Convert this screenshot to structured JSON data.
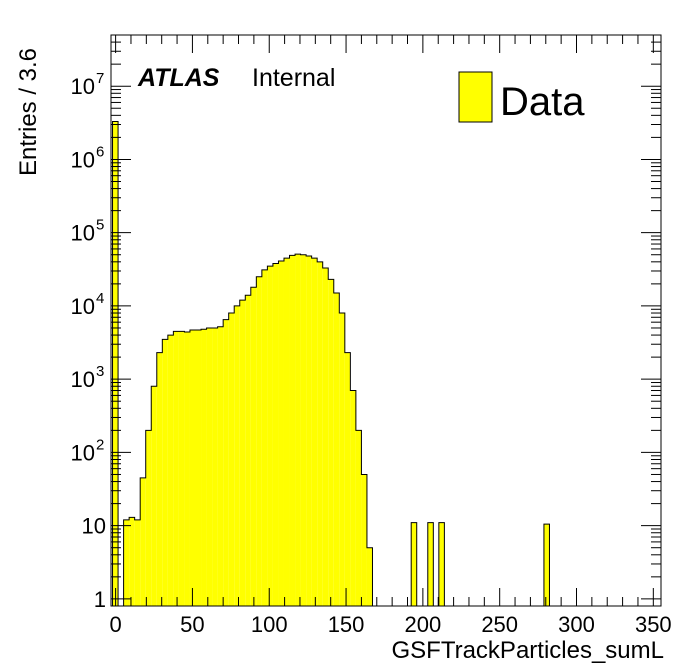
{
  "chart_data": {
    "type": "bar",
    "histogram": true,
    "title": "",
    "xlabel": "GSFTrackParticles_sumL",
    "ylabel": "Entries / 3.6",
    "xlim": [
      -3,
      355
    ],
    "ylim": [
      0.8,
      50000000
    ],
    "log_y": true,
    "grid": false,
    "legend_position": "top-right",
    "bin_width": 3.6,
    "x_ticks": [
      0,
      50,
      100,
      150,
      200,
      250,
      300,
      350
    ],
    "x_tick_labels": [
      "0",
      "50",
      "100",
      "150",
      "200",
      "250",
      "300",
      "350"
    ],
    "y_ticks": [
      1,
      10,
      100,
      1000,
      10000,
      100000,
      1000000,
      10000000
    ],
    "y_tick_labels": [
      {
        "base": "1",
        "exp": ""
      },
      {
        "base": "10",
        "exp": ""
      },
      {
        "base": "10",
        "exp": "2"
      },
      {
        "base": "10",
        "exp": "3"
      },
      {
        "base": "10",
        "exp": "4"
      },
      {
        "base": "10",
        "exp": "5"
      },
      {
        "base": "10",
        "exp": "6"
      },
      {
        "base": "10",
        "exp": "7"
      }
    ],
    "series": [
      {
        "name": "Data",
        "color": "#ffff00",
        "edge_color": "#000000",
        "bin_edges": [
          -2,
          1.6,
          5.2,
          8.8,
          12.4,
          16,
          19.6,
          23.2,
          26.8,
          30.4,
          34,
          37.6,
          41.2,
          44.8,
          48.4,
          52,
          55.6,
          59.2,
          62.8,
          66.4,
          70,
          73.6,
          77.2,
          80.8,
          84.4,
          88,
          91.6,
          95.2,
          98.8,
          102.4,
          106,
          109.6,
          113.2,
          116.8,
          120.4,
          124,
          127.6,
          131.2,
          134.8,
          138.4,
          142,
          145.6,
          149.2,
          152.8,
          156.4,
          160,
          163.6,
          167.2,
          170.8,
          174.4
        ],
        "values": [
          3300000,
          0,
          12,
          13,
          12,
          45,
          200,
          800,
          2300,
          3500,
          4000,
          4500,
          4500,
          4400,
          4700,
          4700,
          4800,
          5000,
          5000,
          5200,
          6500,
          8000,
          10000,
          12000,
          14000,
          18000,
          25000,
          31000,
          35000,
          38000,
          41000,
          45000,
          49000,
          51000,
          50000,
          48000,
          45000,
          40000,
          33000,
          23000,
          15000,
          8000,
          2300,
          700,
          200,
          50,
          5,
          0,
          0
        ],
        "isolated_bins": [
          {
            "x0": 192.4,
            "x1": 196,
            "value": 11
          },
          {
            "x0": 203.2,
            "x1": 206.8,
            "value": 11
          },
          {
            "x0": 210.4,
            "x1": 214,
            "value": 11
          },
          {
            "x0": 278.8,
            "x1": 282.4,
            "value": 10.5
          }
        ]
      }
    ],
    "annotations": {
      "experiment": "ATLAS",
      "status": "Internal"
    },
    "legend": {
      "label": "Data"
    }
  }
}
